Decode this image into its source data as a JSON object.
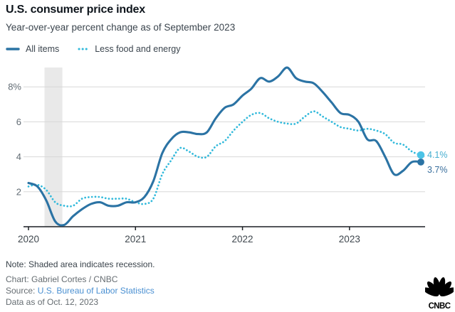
{
  "header": {
    "title": "U.S. consumer price index",
    "subtitle": "Year-over-year percent change as of September 2023"
  },
  "legend": [
    {
      "label": "All items",
      "color": "#2b73a4",
      "style": "solid"
    },
    {
      "label": "Less food and energy",
      "color": "#30b9db",
      "style": "dotted"
    }
  ],
  "chart_data": {
    "type": "line",
    "title": "U.S. consumer price index",
    "subtitle": "Year-over-year percent change as of September 2023",
    "x_unit": "month",
    "x_start": "2020-01",
    "x_end": "2023-09",
    "x_tick_labels": [
      "2020",
      "2021",
      "2022",
      "2023"
    ],
    "x_tick_month_indices": [
      0,
      12,
      24,
      36
    ],
    "y_ticks": [
      2,
      4,
      6,
      8
    ],
    "y_tick_top_label": "8%",
    "ylim": [
      0,
      9.3
    ],
    "grid": "horizontal",
    "recession_band_month_indices": [
      1.8,
      3.8
    ],
    "series": [
      {
        "name": "All items",
        "color": "#2b73a4",
        "style": "solid",
        "end_label": "3.7%",
        "end_label_color": "#3a6f9d",
        "dot_color": "#2b73a4",
        "values": [
          2.5,
          2.3,
          1.5,
          0.3,
          0.1,
          0.6,
          1.0,
          1.3,
          1.4,
          1.2,
          1.2,
          1.4,
          1.4,
          1.7,
          2.6,
          4.2,
          5.0,
          5.4,
          5.4,
          5.3,
          5.4,
          6.2,
          6.8,
          7.0,
          7.5,
          7.9,
          8.5,
          8.3,
          8.6,
          9.1,
          8.5,
          8.3,
          8.2,
          7.7,
          7.1,
          6.5,
          6.4,
          6.0,
          5.0,
          4.9,
          4.0,
          3.0,
          3.2,
          3.7,
          3.7
        ]
      },
      {
        "name": "Less food and energy",
        "color": "#30b9db",
        "style": "dotted",
        "end_label": "4.1%",
        "end_label_color": "#45aed0",
        "dot_color": "#4cc3e6",
        "values": [
          2.3,
          2.4,
          2.1,
          1.4,
          1.2,
          1.2,
          1.6,
          1.7,
          1.7,
          1.6,
          1.6,
          1.6,
          1.4,
          1.3,
          1.6,
          3.0,
          3.8,
          4.5,
          4.3,
          4.0,
          4.0,
          4.6,
          4.9,
          5.5,
          6.0,
          6.4,
          6.5,
          6.2,
          6.0,
          5.9,
          5.9,
          6.3,
          6.6,
          6.3,
          6.0,
          5.7,
          5.6,
          5.5,
          5.6,
          5.5,
          5.3,
          4.8,
          4.7,
          4.3,
          4.1
        ]
      }
    ],
    "colors": {
      "grid": "#d8d8d8",
      "axis": "#1b1f23",
      "band": "#e9e9e9",
      "y_label": "#626c74",
      "x_label": "#3f474e"
    }
  },
  "footer": {
    "note": "Note: Shaded area indicates recession.",
    "chart_credit": "Chart: Gabriel Cortes / CNBC",
    "source_prefix": "Source: ",
    "source_link": "U.S. Bureau of Labor Statistics",
    "data_as_of": "Data as of Oct. 12, 2023",
    "logo_text": "CNBC"
  }
}
